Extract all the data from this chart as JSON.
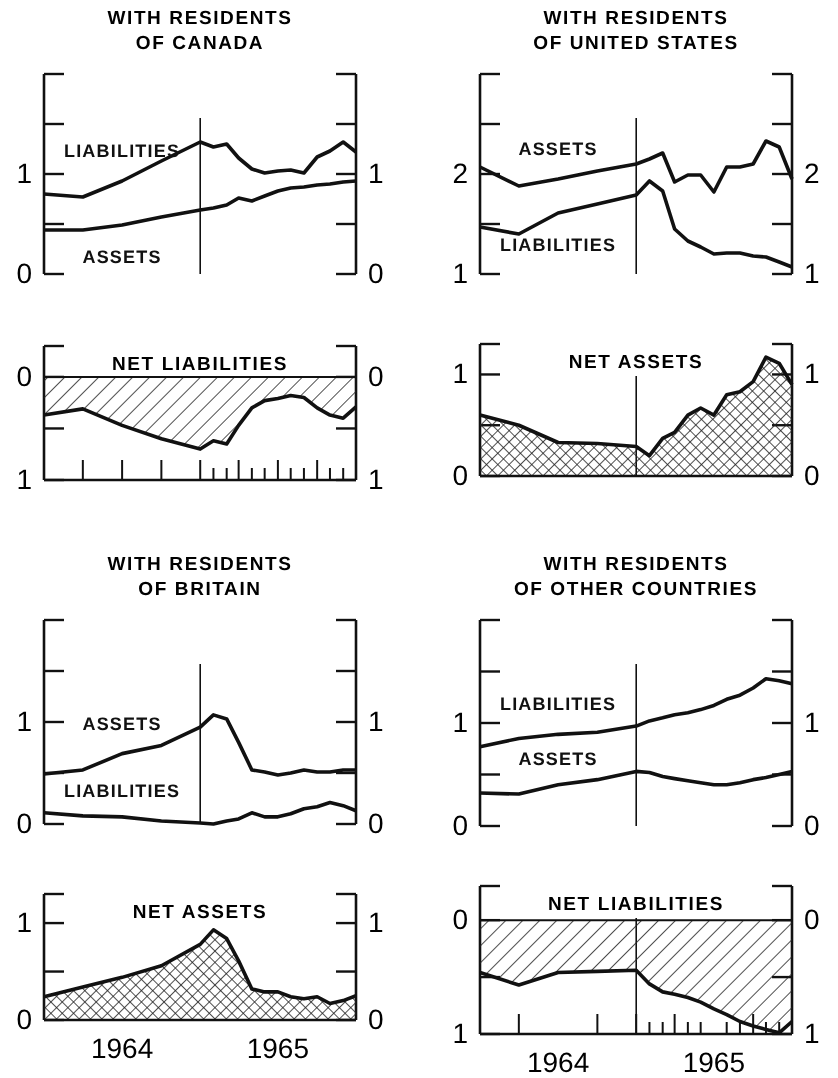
{
  "chart_data": [
    {
      "type": "line",
      "title": "WITH RESIDENTS\nOF CANADA",
      "x": [
        "1963-12",
        "1964-03",
        "1964-06",
        "1964-09",
        "1964-12",
        "1965-01",
        "1965-02",
        "1965-03",
        "1965-04",
        "1965-05",
        "1965-06",
        "1965-07",
        "1965-08",
        "1965-09",
        "1965-10",
        "1965-11",
        "1965-12"
      ],
      "xlim": [
        "1963-12",
        "1965-12"
      ],
      "tick_labels": "y",
      "ylim": [
        0,
        2
      ],
      "yticks": [
        0,
        {
          "value": 0.5,
          "label": null
        },
        1,
        {
          "value": 1.5,
          "label": null
        },
        {
          "value": 2,
          "label": null
        }
      ],
      "y2lim": [
        0,
        2
      ],
      "y2ticks": [
        0,
        {
          "value": 0.5,
          "label": null
        },
        1,
        {
          "value": 1.5,
          "label": null
        },
        {
          "value": 2,
          "label": null
        }
      ],
      "ref_lines": [
        {
          "axis": "x",
          "value": "1964-12"
        }
      ],
      "series": [
        {
          "name": "LIABILITIES",
          "color": "#111111",
          "values": [
            0.8,
            0.77,
            0.93,
            1.13,
            1.32,
            1.27,
            1.3,
            1.16,
            1.05,
            1.01,
            1.03,
            1.04,
            1.01,
            1.17,
            1.23,
            1.32,
            1.22
          ]
        },
        {
          "name": "ASSETS",
          "color": "#111111",
          "values": [
            0.44,
            0.44,
            0.49,
            0.57,
            0.64,
            0.66,
            0.69,
            0.76,
            0.73,
            0.78,
            0.83,
            0.86,
            0.87,
            0.89,
            0.9,
            0.92,
            0.93
          ]
        }
      ]
    },
    {
      "type": "line",
      "title": "WITH RESIDENTS\nOF UNITED STATES",
      "x": [
        "1963-12",
        "1964-03",
        "1964-06",
        "1964-09",
        "1964-12",
        "1965-01",
        "1965-02",
        "1965-03",
        "1965-04",
        "1965-05",
        "1965-06",
        "1965-07",
        "1965-08",
        "1965-09",
        "1965-10",
        "1965-11",
        "1965-12"
      ],
      "xlim": [
        "1963-12",
        "1965-12"
      ],
      "tick_labels": "y",
      "ylim": [
        1,
        3
      ],
      "yticks": [
        1,
        {
          "value": 1.5,
          "label": null
        },
        2,
        {
          "value": 2.5,
          "label": null
        },
        {
          "value": 3,
          "label": null
        }
      ],
      "y2lim": [
        1,
        3
      ],
      "y2ticks": [
        1,
        {
          "value": 1.5,
          "label": null
        },
        2,
        {
          "value": 2.5,
          "label": null
        },
        {
          "value": 3,
          "label": null
        }
      ],
      "ref_lines": [
        {
          "axis": "x",
          "value": "1964-12"
        }
      ],
      "series": [
        {
          "name": "ASSETS",
          "color": "#111111",
          "values": [
            2.07,
            1.88,
            1.95,
            2.03,
            2.1,
            2.15,
            2.21,
            1.92,
            1.99,
            1.99,
            1.82,
            2.07,
            2.07,
            2.1,
            2.33,
            2.27,
            1.95
          ]
        },
        {
          "name": "LIABILITIES",
          "color": "#111111",
          "values": [
            1.47,
            1.4,
            1.61,
            1.7,
            1.79,
            1.93,
            1.83,
            1.45,
            1.33,
            1.27,
            1.2,
            1.21,
            1.21,
            1.18,
            1.17,
            1.12,
            1.07
          ]
        }
      ]
    },
    {
      "type": "area",
      "title": "NET LIABILITIES",
      "x": [
        "1963-12",
        "1964-03",
        "1964-06",
        "1964-09",
        "1964-12",
        "1965-01",
        "1965-02",
        "1965-03",
        "1965-04",
        "1965-05",
        "1965-06",
        "1965-07",
        "1965-08",
        "1965-09",
        "1965-10",
        "1965-11",
        "1965-12"
      ],
      "xlim": [
        "1963-12",
        "1965-12"
      ],
      "xticks": [
        {
          "value": "1964-03",
          "label": null
        },
        {
          "value": "1964-06",
          "label": null
        },
        {
          "value": "1964-09",
          "label": null
        },
        {
          "value": "1964-12",
          "label": null
        },
        {
          "value": "1965-01",
          "label": null
        },
        {
          "value": "1965-02",
          "label": null
        },
        {
          "value": "1965-03",
          "label": null
        },
        {
          "value": "1965-04",
          "label": null
        },
        {
          "value": "1965-05",
          "label": null
        },
        {
          "value": "1965-06",
          "label": null
        },
        {
          "value": "1965-07",
          "label": null
        },
        {
          "value": "1965-08",
          "label": null
        },
        {
          "value": "1965-09",
          "label": null
        },
        {
          "value": "1965-10",
          "label": null
        },
        {
          "value": "1965-11",
          "label": null
        }
      ],
      "tick_labels": "y",
      "ylim": [
        1,
        -0.3
      ],
      "yticks": [
        1,
        {
          "value": 0.5,
          "label": null
        },
        0,
        {
          "value": -0.3,
          "label": null
        }
      ],
      "y2lim": [
        1,
        -0.3
      ],
      "y2ticks": [
        1,
        {
          "value": 0.5,
          "label": null
        },
        0,
        {
          "value": -0.3,
          "label": null
        }
      ],
      "series": [
        {
          "color": "#111111",
          "values": [
            0.37,
            0.31,
            0.47,
            0.6,
            0.7,
            0.62,
            0.65,
            0.47,
            0.3,
            0.23,
            0.21,
            0.18,
            0.2,
            0.3,
            0.37,
            0.4,
            0.29
          ]
        }
      ]
    },
    {
      "type": "area",
      "title": "NET ASSETS",
      "x": [
        "1963-12",
        "1964-03",
        "1964-06",
        "1964-09",
        "1964-12",
        "1965-01",
        "1965-02",
        "1965-03",
        "1965-04",
        "1965-05",
        "1965-06",
        "1965-07",
        "1965-08",
        "1965-09",
        "1965-10",
        "1965-11",
        "1965-12"
      ],
      "xlim": [
        "1963-12",
        "1965-12"
      ],
      "tick_labels": "y",
      "ylim": [
        0,
        1.3
      ],
      "yticks": [
        0,
        {
          "value": 0.5,
          "label": null
        },
        1,
        {
          "value": 1.3,
          "label": null
        }
      ],
      "y2lim": [
        0,
        1.3
      ],
      "y2ticks": [
        0,
        {
          "value": 0.5,
          "label": null
        },
        1,
        {
          "value": 1.3,
          "label": null
        }
      ],
      "ref_lines": [
        {
          "axis": "x",
          "value": "1964-12"
        }
      ],
      "series": [
        {
          "color": "#111111",
          "values": [
            0.6,
            0.5,
            0.33,
            0.32,
            0.29,
            0.2,
            0.37,
            0.43,
            0.6,
            0.67,
            0.6,
            0.8,
            0.83,
            0.93,
            1.17,
            1.11,
            0.9
          ]
        }
      ]
    },
    {
      "type": "line",
      "title": "WITH RESIDENTS\nOF BRITAIN",
      "x": [
        "1963-12",
        "1964-03",
        "1964-06",
        "1964-09",
        "1964-12",
        "1965-01",
        "1965-02",
        "1965-03",
        "1965-04",
        "1965-05",
        "1965-06",
        "1965-07",
        "1965-08",
        "1965-09",
        "1965-10",
        "1965-11",
        "1965-12"
      ],
      "xlim": [
        "1963-12",
        "1965-12"
      ],
      "tick_labels": "y",
      "ylim": [
        0,
        2
      ],
      "yticks": [
        0,
        {
          "value": 0.5,
          "label": null
        },
        1,
        {
          "value": 1.5,
          "label": null
        },
        {
          "value": 2,
          "label": null
        }
      ],
      "y2lim": [
        0,
        2
      ],
      "y2ticks": [
        0,
        {
          "value": 0.5,
          "label": null
        },
        1,
        {
          "value": 1.5,
          "label": null
        },
        {
          "value": 2,
          "label": null
        }
      ],
      "ref_lines": [
        {
          "axis": "x",
          "value": "1964-12"
        }
      ],
      "series": [
        {
          "name": "ASSETS",
          "color": "#111111",
          "values": [
            0.49,
            0.53,
            0.69,
            0.77,
            0.95,
            1.07,
            1.03,
            0.8,
            0.53,
            0.51,
            0.48,
            0.5,
            0.53,
            0.51,
            0.51,
            0.53,
            0.53
          ]
        },
        {
          "name": "LIABILITIES",
          "color": "#111111",
          "values": [
            0.11,
            0.08,
            0.07,
            0.03,
            0.01,
            0.0,
            0.03,
            0.05,
            0.11,
            0.07,
            0.07,
            0.1,
            0.15,
            0.17,
            0.21,
            0.18,
            0.13
          ]
        }
      ]
    },
    {
      "type": "line",
      "title": "WITH RESIDENTS\nOF OTHER COUNTRIES",
      "x": [
        "1963-12",
        "1964-03",
        "1964-06",
        "1964-09",
        "1964-12",
        "1965-01",
        "1965-02",
        "1965-03",
        "1965-04",
        "1965-05",
        "1965-06",
        "1965-07",
        "1965-08",
        "1965-09",
        "1965-10",
        "1965-11",
        "1965-12"
      ],
      "xlim": [
        "1963-12",
        "1965-12"
      ],
      "tick_labels": "y",
      "ylim": [
        0,
        2
      ],
      "yticks": [
        0,
        {
          "value": 0.5,
          "label": null
        },
        1,
        {
          "value": 1.5,
          "label": null
        },
        {
          "value": 2,
          "label": null
        }
      ],
      "y2lim": [
        0,
        2
      ],
      "y2ticks": [
        0,
        {
          "value": 0.5,
          "label": null
        },
        1,
        {
          "value": 1.5,
          "label": null
        },
        {
          "value": 2,
          "label": null
        }
      ],
      "ref_lines": [
        {
          "axis": "x",
          "value": "1964-12"
        }
      ],
      "series": [
        {
          "name": "LIABILITIES",
          "color": "#111111",
          "values": [
            0.77,
            0.85,
            0.89,
            0.91,
            0.97,
            1.02,
            1.05,
            1.08,
            1.1,
            1.13,
            1.17,
            1.23,
            1.27,
            1.34,
            1.43,
            1.41,
            1.38
          ]
        },
        {
          "name": "ASSETS",
          "color": "#111111",
          "values": [
            0.32,
            0.31,
            0.4,
            0.45,
            0.53,
            0.52,
            0.48,
            0.46,
            0.44,
            0.42,
            0.4,
            0.4,
            0.42,
            0.45,
            0.47,
            0.5,
            0.53
          ]
        }
      ]
    },
    {
      "type": "area",
      "title": "NET ASSETS",
      "x": [
        "1963-12",
        "1964-03",
        "1964-06",
        "1964-09",
        "1964-12",
        "1965-01",
        "1965-02",
        "1965-03",
        "1965-04",
        "1965-05",
        "1965-06",
        "1965-07",
        "1965-08",
        "1965-09",
        "1965-10",
        "1965-11",
        "1965-12"
      ],
      "xlim": [
        "1963-12",
        "1965-12"
      ],
      "xticks": [
        {
          "value": "1964-06",
          "label": "1964"
        },
        {
          "value": "1965-06",
          "label": "1965"
        }
      ],
      "ylim": [
        0,
        1.3
      ],
      "yticks": [
        0,
        {
          "value": 0.5,
          "label": null
        },
        1,
        {
          "value": 1.3,
          "label": null
        }
      ],
      "y2lim": [
        0,
        1.3
      ],
      "y2ticks": [
        0,
        {
          "value": 0.5,
          "label": null
        },
        1,
        {
          "value": 1.3,
          "label": null
        }
      ],
      "series": [
        {
          "color": "#111111",
          "values": [
            0.24,
            0.34,
            0.44,
            0.56,
            0.78,
            0.93,
            0.84,
            0.61,
            0.32,
            0.29,
            0.29,
            0.24,
            0.22,
            0.24,
            0.17,
            0.2,
            0.25
          ]
        }
      ]
    },
    {
      "type": "area",
      "title": "NET LIABILITIES",
      "x": [
        "1963-12",
        "1964-03",
        "1964-06",
        "1964-09",
        "1964-12",
        "1965-01",
        "1965-02",
        "1965-03",
        "1965-04",
        "1965-05",
        "1965-06",
        "1965-07",
        "1965-08",
        "1965-09",
        "1965-10",
        "1965-11",
        "1965-12"
      ],
      "xlim": [
        "1963-12",
        "1965-12"
      ],
      "xticks": [
        {
          "value": "1964-03",
          "label": null
        },
        {
          "value": "1964-06",
          "label": "1964"
        },
        {
          "value": "1964-09",
          "label": null
        },
        {
          "value": "1964-12",
          "label": null
        },
        {
          "value": "1965-01",
          "label": null
        },
        {
          "value": "1965-02",
          "label": null
        },
        {
          "value": "1965-03",
          "label": null
        },
        {
          "value": "1965-04",
          "label": null
        },
        {
          "value": "1965-05",
          "label": null
        },
        {
          "value": "1965-06",
          "label": "1965"
        },
        {
          "value": "1965-07",
          "label": null
        },
        {
          "value": "1965-08",
          "label": null
        },
        {
          "value": "1965-09",
          "label": null
        },
        {
          "value": "1965-10",
          "label": null
        },
        {
          "value": "1965-11",
          "label": null
        }
      ],
      "ylim": [
        1,
        -0.3
      ],
      "yticks": [
        1,
        {
          "value": 0.5,
          "label": null
        },
        0,
        {
          "value": -0.3,
          "label": null
        }
      ],
      "y2lim": [
        1,
        -0.3
      ],
      "y2ticks": [
        1,
        {
          "value": 0.5,
          "label": null
        },
        0,
        {
          "value": -0.3,
          "label": null
        }
      ],
      "ref_lines": [
        {
          "axis": "x",
          "value": "1964-12"
        }
      ],
      "series": [
        {
          "color": "#111111",
          "values": [
            0.46,
            0.57,
            0.46,
            0.45,
            0.44,
            0.56,
            0.63,
            0.65,
            0.68,
            0.72,
            0.78,
            0.83,
            0.89,
            0.93,
            0.96,
            0.99,
            0.89
          ]
        }
      ]
    }
  ]
}
